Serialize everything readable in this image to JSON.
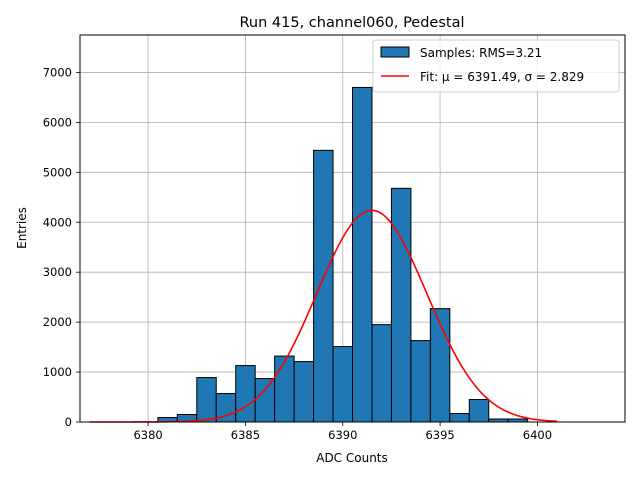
{
  "chart_data": {
    "type": "bar",
    "title": "Run 415, channel060, Pedestal",
    "xlabel": "ADC Counts",
    "ylabel": "Entries",
    "xlim": [
      6376.5,
      6404.5
    ],
    "ylim": [
      0,
      7750
    ],
    "xticks": [
      6380,
      6385,
      6390,
      6395,
      6400
    ],
    "yticks": [
      0,
      1000,
      2000,
      3000,
      4000,
      5000,
      6000,
      7000
    ],
    "grid": true,
    "legend_position": "top-right",
    "bar_color": "#1f77b4",
    "fit_color": "#ff0000",
    "bin_edges": [
      6380.5,
      6381.5,
      6382.5,
      6383.5,
      6384.5,
      6385.5,
      6386.5,
      6387.5,
      6388.5,
      6389.5,
      6390.5,
      6391.5,
      6392.5,
      6393.5,
      6394.5,
      6395.5,
      6396.5,
      6397.5,
      6398.5,
      6399.5,
      6400.5
    ],
    "counts": [
      90,
      150,
      890,
      570,
      1130,
      870,
      1320,
      1210,
      5440,
      1510,
      6700,
      1950,
      4680,
      1630,
      2270,
      170,
      450,
      60,
      60,
      0
    ],
    "fit": {
      "mu": 6391.49,
      "sigma": 2.829,
      "amplitude": 4240,
      "x_range": [
        6377,
        6401
      ]
    },
    "legend": [
      {
        "label": "Samples: RMS=3.21",
        "kind": "patch"
      },
      {
        "label": "Fit: μ = 6391.49, σ = 2.829",
        "kind": "line"
      }
    ]
  }
}
